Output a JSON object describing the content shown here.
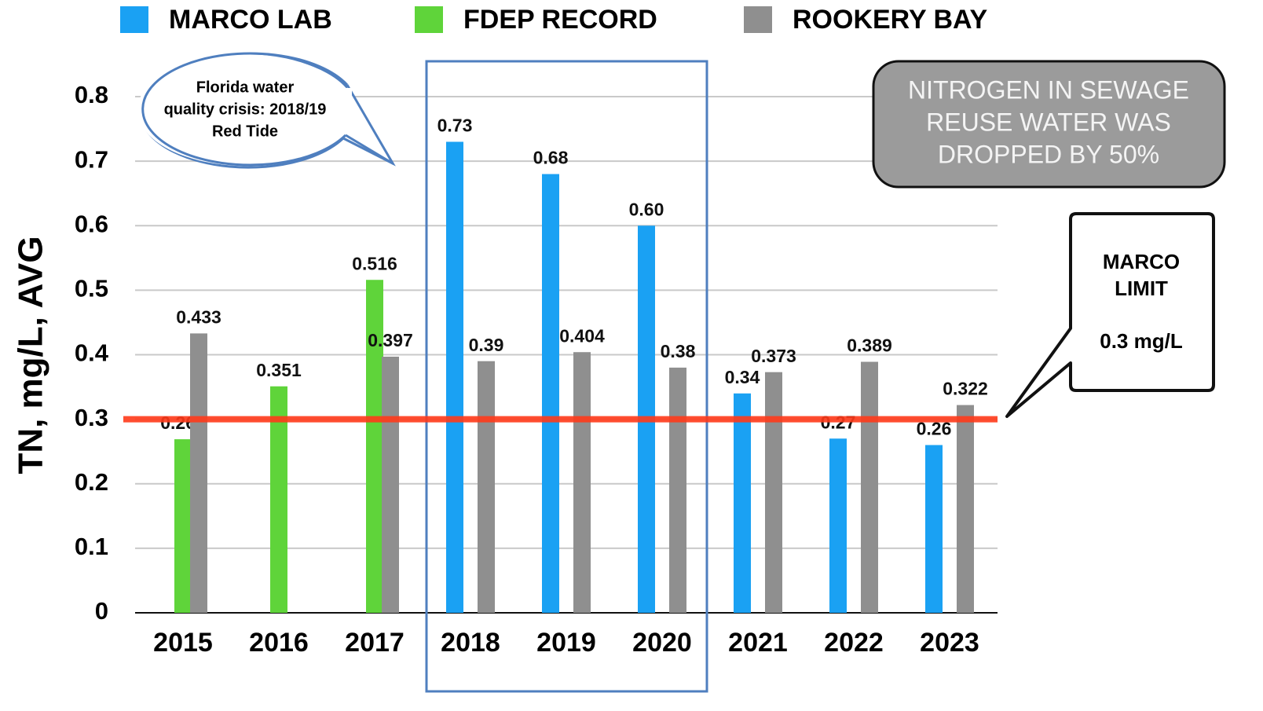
{
  "chart_data": {
    "type": "bar",
    "y_label": "TN, mg/L, AVG",
    "categories": [
      "2015",
      "2016",
      "2017",
      "2018",
      "2019",
      "2020",
      "2021",
      "2022",
      "2023"
    ],
    "series": [
      {
        "name": "MARCO LAB",
        "color": "#1aa1f3",
        "values": [
          null,
          null,
          null,
          0.73,
          0.68,
          0.6,
          0.34,
          0.27,
          0.26
        ],
        "value_labels": [
          null,
          null,
          null,
          "0.73",
          "0.68",
          "0.60",
          "0.34",
          "0.27",
          "0.26"
        ]
      },
      {
        "name": "FDEP RECORD",
        "color": "#5fd43a",
        "values": [
          0.269,
          0.351,
          0.516,
          null,
          null,
          null,
          null,
          null,
          null
        ],
        "value_labels": [
          "0.269",
          "0.351",
          "0.516",
          null,
          null,
          null,
          null,
          null,
          null
        ]
      },
      {
        "name": "ROOKERY BAY",
        "color": "#8f8f8f",
        "values": [
          0.433,
          null,
          0.397,
          0.39,
          0.404,
          0.38,
          0.373,
          0.389,
          0.322
        ],
        "value_labels": [
          "0.433",
          null,
          "0.397",
          "0.39",
          "0.404",
          "0.38",
          "0.373",
          "0.389",
          "0.322"
        ]
      }
    ],
    "ylim": [
      0,
      0.8
    ],
    "yticks": [
      0,
      0.1,
      0.2,
      0.3,
      0.4,
      0.5,
      0.6,
      0.7,
      0.8
    ],
    "grid": true,
    "legend": "top",
    "reference_line": {
      "value": 0.3,
      "color": "#ff3a1a"
    },
    "annotations": {
      "bubble": [
        "Florida water",
        "quality crisis: 2018/19",
        "Red Tide"
      ],
      "box": [
        "NITROGEN IN SEWAGE",
        "REUSE WATER WAS",
        "DROPPED BY 50%"
      ],
      "limit_callout": [
        "MARCO",
        "LIMIT",
        "0.3 mg/L"
      ]
    }
  }
}
